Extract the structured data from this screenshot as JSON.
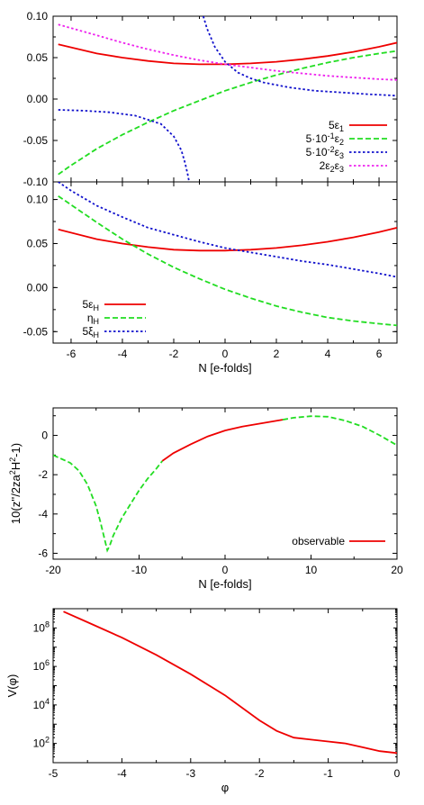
{
  "colors": {
    "red": "#ee0000",
    "green": "#22dd22",
    "blue": "#1111cc",
    "magenta": "#ee22ee",
    "axis": "#000000"
  },
  "chart_data": [
    {
      "type": "line",
      "xlabel": "",
      "ylabel": "",
      "xlim": [
        -6.7,
        6.7
      ],
      "ylim": [
        -0.1,
        0.1
      ],
      "yticks": [
        "-0.10",
        "-0.05",
        "0.00",
        "0.05",
        "0.10"
      ],
      "yticks_values": [
        -0.1,
        -0.05,
        0.0,
        0.05,
        0.1
      ],
      "xticks_values": [
        -6,
        -4,
        -2,
        0,
        2,
        4,
        6
      ],
      "legend_position": "bottom-right",
      "series": [
        {
          "name": "5ε1",
          "legend": {
            "base": "5ε",
            "sub": "1"
          },
          "color": "#ee0000",
          "style": "solid",
          "x": [
            -6.5,
            -5,
            -4,
            -3,
            -2,
            -1,
            0,
            1,
            2,
            3,
            4,
            5,
            6,
            6.7
          ],
          "y": [
            0.066,
            0.055,
            0.05,
            0.046,
            0.043,
            0.042,
            0.042,
            0.043,
            0.045,
            0.048,
            0.052,
            0.057,
            0.063,
            0.068
          ]
        },
        {
          "name": "5·10^-1ε2",
          "legend": {
            "base": "5·10",
            "sup": "-1",
            "mid": "ε",
            "sub": "2"
          },
          "color": "#22dd22",
          "style": "dashed",
          "x": [
            -6.5,
            -6,
            -5,
            -4,
            -3,
            -2,
            -1,
            0,
            1,
            2,
            3,
            4,
            5,
            6,
            6.7
          ],
          "y": [
            -0.091,
            -0.08,
            -0.06,
            -0.043,
            -0.028,
            -0.014,
            -0.002,
            0.01,
            0.02,
            0.029,
            0.037,
            0.044,
            0.05,
            0.055,
            0.058
          ]
        },
        {
          "name": "5·10^-2ε3",
          "legend": {
            "base": "5·10",
            "sup": "-2",
            "mid": "ε",
            "sub": "3"
          },
          "color": "#1111cc",
          "style": "dotted",
          "segments": [
            {
              "x": [
                -6.5,
                -5.5,
                -4.5,
                -3.5,
                -2.5,
                -2,
                -1.7,
                -1.55,
                -1.45,
                -1.4
              ],
              "y": [
                -0.013,
                -0.014,
                -0.016,
                -0.02,
                -0.03,
                -0.045,
                -0.062,
                -0.078,
                -0.092,
                -0.1
              ]
            },
            {
              "x": [
                -0.85,
                -0.7,
                -0.4,
                0,
                0.5,
                1,
                1.5,
                2.5,
                3.5,
                4.5,
                5.5,
                6.7
              ],
              "y": [
                0.1,
                0.085,
                0.063,
                0.045,
                0.032,
                0.025,
                0.02,
                0.014,
                0.01,
                0.008,
                0.006,
                0.004
              ]
            }
          ]
        },
        {
          "name": "2ε2ε3",
          "legend": {
            "base": "2ε",
            "sub": "2",
            "mid": "ε",
            "sub2": "3"
          },
          "color": "#ee22ee",
          "style": "dotted",
          "x": [
            -6.5,
            -5,
            -4,
            -3,
            -2,
            -1,
            0,
            1,
            2,
            3,
            4,
            5,
            6,
            6.7
          ],
          "y": [
            0.09,
            0.077,
            0.068,
            0.06,
            0.053,
            0.047,
            0.042,
            0.038,
            0.034,
            0.031,
            0.028,
            0.026,
            0.024,
            0.023
          ]
        }
      ]
    },
    {
      "type": "line",
      "xlabel": "N [e-folds]",
      "ylabel": "",
      "xlim": [
        -6.7,
        6.7
      ],
      "ylim": [
        -0.063,
        0.12
      ],
      "yticks": [
        "-0.05",
        "0.00",
        "0.05",
        "0.10"
      ],
      "yticks_values": [
        -0.05,
        0.0,
        0.05,
        0.1
      ],
      "xticks": [
        "-6",
        "-4",
        "-2",
        "0",
        "2",
        "4",
        "6"
      ],
      "xticks_values": [
        -6,
        -4,
        -2,
        0,
        2,
        4,
        6
      ],
      "legend_position": "bottom-left",
      "series": [
        {
          "name": "5εH",
          "legend": {
            "base": "5ε",
            "sub": "H"
          },
          "color": "#ee0000",
          "style": "solid",
          "x": [
            -6.5,
            -5,
            -4,
            -3,
            -2,
            -1,
            0,
            1,
            2,
            3,
            4,
            5,
            6,
            6.7
          ],
          "y": [
            0.066,
            0.055,
            0.05,
            0.046,
            0.043,
            0.042,
            0.042,
            0.043,
            0.045,
            0.048,
            0.052,
            0.057,
            0.063,
            0.068
          ]
        },
        {
          "name": "ηH",
          "legend": {
            "base": "η",
            "sub": "H"
          },
          "color": "#22dd22",
          "style": "dashed",
          "x": [
            -6.5,
            -5,
            -4,
            -3,
            -2,
            -1,
            0,
            1,
            2,
            3,
            4,
            5,
            6,
            6.7
          ],
          "y": [
            0.104,
            0.074,
            0.055,
            0.038,
            0.023,
            0.01,
            -0.002,
            -0.012,
            -0.021,
            -0.028,
            -0.034,
            -0.038,
            -0.041,
            -0.043
          ]
        },
        {
          "name": "5ξH",
          "legend": {
            "base": "5ξ",
            "sub": "H"
          },
          "color": "#1111cc",
          "style": "dotted",
          "x": [
            -6.5,
            -6,
            -5,
            -4,
            -3,
            -2,
            -1,
            0,
            1,
            2,
            3,
            4,
            5,
            6,
            6.7
          ],
          "y": [
            0.12,
            0.11,
            0.093,
            0.08,
            0.068,
            0.06,
            0.052,
            0.045,
            0.04,
            0.035,
            0.03,
            0.026,
            0.021,
            0.016,
            0.012
          ]
        }
      ]
    },
    {
      "type": "line",
      "xlabel": "N [e-folds]",
      "ylabel": "10(z''/2za²H²-1)",
      "ylabel_parts": {
        "a": "10(z''/2za",
        "b": "2",
        "c": "H",
        "d": "2",
        "e": "-1)"
      },
      "xlim": [
        -20,
        20
      ],
      "ylim": [
        -6.3,
        1.4
      ],
      "yticks": [
        "-6",
        "-4",
        "-2",
        "0"
      ],
      "yticks_values": [
        -6,
        -4,
        -2,
        0
      ],
      "xticks": [
        "-20",
        "-10",
        "0",
        "10",
        "20"
      ],
      "xticks_values": [
        -20,
        -10,
        0,
        10,
        20
      ],
      "legend_position": "bottom-right",
      "series": [
        {
          "name": "",
          "color": "#22dd22",
          "style": "dashed",
          "x": [
            -20,
            -18,
            -17,
            -16,
            -15,
            -14.5,
            -14,
            -13.7,
            -13.4,
            -13,
            -12,
            -11,
            -10,
            -9,
            -8,
            -7.3
          ],
          "y": [
            -1.0,
            -1.4,
            -1.8,
            -2.5,
            -3.6,
            -4.4,
            -5.3,
            -5.85,
            -5.6,
            -5.1,
            -4.2,
            -3.5,
            -2.8,
            -2.2,
            -1.7,
            -1.3
          ]
        },
        {
          "name": "observable",
          "color": "#ee0000",
          "style": "solid",
          "x": [
            -7.3,
            -6,
            -4,
            -2,
            0,
            2,
            4,
            6,
            6.7
          ],
          "y": [
            -1.3,
            -0.9,
            -0.45,
            -0.05,
            0.25,
            0.45,
            0.6,
            0.75,
            0.8
          ]
        },
        {
          "name": "",
          "color": "#22dd22",
          "style": "dashed",
          "x": [
            6.7,
            8,
            10,
            12,
            14,
            16,
            18,
            20
          ],
          "y": [
            0.8,
            0.9,
            0.98,
            0.95,
            0.75,
            0.45,
            0.0,
            -0.5
          ]
        }
      ]
    },
    {
      "type": "line",
      "xlabel": "φ",
      "ylabel": "V(φ)",
      "xlim": [
        -5,
        0
      ],
      "ylim_log10": [
        1,
        9
      ],
      "yscale": "log",
      "yticks": [
        "10²",
        "10⁴",
        "10⁶",
        "10⁸"
      ],
      "yticks_exp": [
        2,
        4,
        6,
        8
      ],
      "xticks": [
        "-5",
        "-4",
        "-3",
        "-2",
        "-1",
        "0"
      ],
      "xticks_values": [
        -5,
        -4,
        -3,
        -2,
        -1,
        0
      ],
      "series": [
        {
          "name": "",
          "color": "#ee0000",
          "style": "solid",
          "x": [
            -4.85,
            -4.5,
            -4,
            -3.5,
            -3,
            -2.5,
            -2,
            -1.75,
            -1.5,
            -1.25,
            -1,
            -0.75,
            -0.5,
            -0.25,
            0
          ],
          "y": [
            8.85,
            8.3,
            7.5,
            6.6,
            5.6,
            4.5,
            3.2,
            2.65,
            2.3,
            2.2,
            2.1,
            2.0,
            1.8,
            1.6,
            1.5
          ]
        }
      ]
    }
  ]
}
